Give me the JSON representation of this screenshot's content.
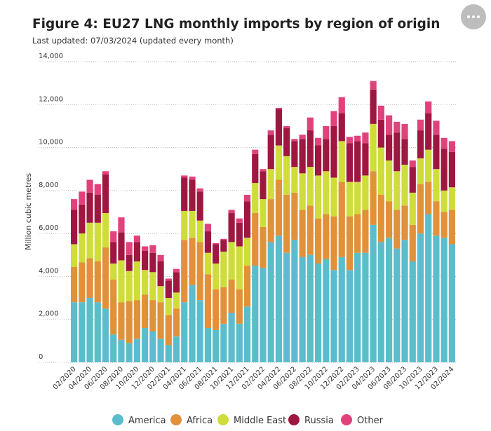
{
  "chart_data": {
    "type": "stacked_bar",
    "title": "Figure 4: EU27 LNG monthly imports by region of origin",
    "subtitle": "Last updated: 07/03/2024 (updated every month)",
    "y_label": "Million cubic metres",
    "categories": [
      "02/2020",
      null,
      "04/2020",
      null,
      "06/2020",
      null,
      "08/2020",
      null,
      "10/2020",
      null,
      "12/2020",
      null,
      "02/2021",
      null,
      "04/2021",
      null,
      "06/2021",
      null,
      "08/2021",
      null,
      "10/2021",
      null,
      "12/2021",
      null,
      "02/2022",
      null,
      "04/2022",
      null,
      "06/2022",
      null,
      "08/2022",
      null,
      "10/2022",
      null,
      "12/2022",
      null,
      "02/2023",
      null,
      "04/2023",
      null,
      "06/2023",
      null,
      "08/2023",
      null,
      "10/2023",
      null,
      "12/2023",
      null,
      "02/2024"
    ],
    "ylim": [
      0,
      14000
    ],
    "yticks": [
      0,
      {
        "value": 2000,
        "label": "2,000"
      },
      {
        "value": 4000,
        "label": "4,000"
      },
      {
        "value": 6000,
        "label": "6,000"
      },
      {
        "value": 8000,
        "label": "8,000"
      },
      {
        "value": 10000,
        "label": "10,000"
      },
      {
        "value": 12000,
        "label": "12,000"
      },
      {
        "value": 14000,
        "label": "14,000"
      }
    ],
    "grid": true,
    "legend_position": "bottom",
    "series": [
      {
        "name": "America",
        "color": "#5bbccc",
        "values": [
          2800,
          2800,
          3000,
          2800,
          2500,
          1300,
          1050,
          900,
          1100,
          1600,
          1450,
          1100,
          800,
          1200,
          2800,
          3600,
          2900,
          1600,
          1500,
          1800,
          2300,
          1800,
          2600,
          4500,
          4400,
          5600,
          5900,
          5100,
          5700,
          4900,
          5000,
          4600,
          4800,
          4300,
          4900,
          4300,
          5100,
          5100,
          6400,
          5600,
          5800,
          5300,
          5700,
          4700,
          6000,
          6900,
          5900,
          5800,
          5500
        ]
      },
      {
        "name": "Africa",
        "color": "#e0913a",
        "values": [
          1650,
          1850,
          1850,
          1900,
          2850,
          2550,
          1750,
          1950,
          1800,
          1550,
          1450,
          1700,
          1400,
          1300,
          2900,
          2200,
          2700,
          2500,
          1900,
          1700,
          1550,
          1600,
          1900,
          2450,
          1900,
          2000,
          2600,
          2700,
          2200,
          2200,
          2300,
          2100,
          2100,
          2500,
          3500,
          2500,
          1800,
          2000,
          2500,
          2200,
          1700,
          1800,
          1600,
          1700,
          2300,
          1500,
          1600,
          1200,
          1600
        ]
      },
      {
        "name": "Middle East",
        "color": "#cfdc3a",
        "values": [
          1050,
          1350,
          1650,
          1800,
          1600,
          750,
          1950,
          1400,
          1800,
          1150,
          1300,
          750,
          800,
          750,
          1350,
          1250,
          1000,
          1000,
          1200,
          1650,
          1750,
          2000,
          1300,
          1400,
          1300,
          1400,
          1600,
          1800,
          1200,
          1700,
          1800,
          2000,
          2000,
          1800,
          1900,
          1600,
          1500,
          1600,
          2200,
          2200,
          1900,
          1800,
          1900,
          1500,
          1200,
          1500,
          1500,
          1000,
          1050
        ]
      },
      {
        "name": "Russia",
        "color": "#9e1740",
        "values": [
          1600,
          1350,
          1400,
          1300,
          1800,
          1000,
          1300,
          750,
          900,
          900,
          900,
          1150,
          800,
          950,
          1550,
          1450,
          1350,
          1000,
          900,
          550,
          1350,
          1100,
          1700,
          1350,
          1300,
          1600,
          1700,
          1300,
          1200,
          1600,
          1700,
          1400,
          1500,
          2400,
          1300,
          1800,
          1900,
          1500,
          1600,
          1300,
          1200,
          1800,
          1200,
          1200,
          1300,
          1700,
          1600,
          1950,
          1650
        ]
      },
      {
        "name": "Other",
        "color": "#e0437c",
        "values": [
          500,
          600,
          600,
          500,
          150,
          500,
          700,
          600,
          300,
          200,
          350,
          300,
          100,
          150,
          100,
          150,
          150,
          350,
          50,
          50,
          150,
          200,
          300,
          200,
          100,
          200,
          50,
          100,
          100,
          200,
          600,
          350,
          600,
          700,
          750,
          300,
          250,
          500,
          400,
          650,
          900,
          500,
          700,
          300,
          500,
          550,
          650,
          500,
          500
        ]
      }
    ]
  }
}
